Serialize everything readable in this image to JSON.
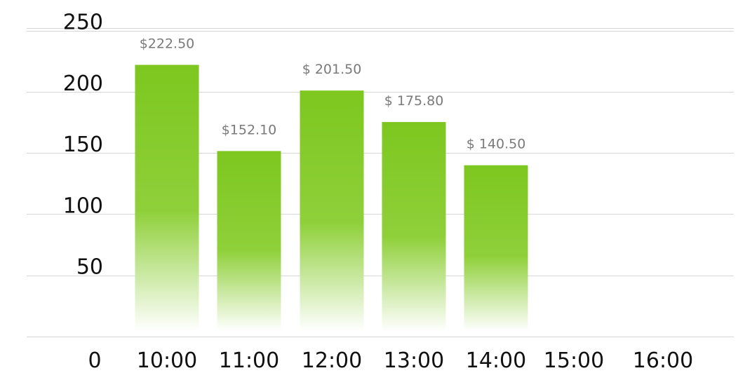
{
  "chart_data": {
    "type": "bar",
    "title": "",
    "xlabel": "",
    "ylabel": "",
    "categories": [
      "10:00",
      "11:00",
      "12:00",
      "13:00",
      "14:00",
      "15:00",
      "16:00"
    ],
    "values": [
      222.5,
      152.1,
      201.5,
      175.8,
      140.5,
      null,
      null
    ],
    "data_labels": [
      "$222.50",
      "$152.10",
      "$ 201.50",
      "$ 175.80",
      "$ 140.50",
      "",
      ""
    ],
    "y_ticks": [
      "0",
      "50",
      "100",
      "150",
      "200",
      "250"
    ],
    "ylim": [
      0,
      250
    ],
    "grid": true,
    "legend": "none",
    "colors": {
      "bar_top": "#7dc71f",
      "bar_bottom": "#ffffff",
      "grid": "#d6d6d6",
      "data_label": "#7a7a7a",
      "tick_label": "#111111"
    }
  }
}
